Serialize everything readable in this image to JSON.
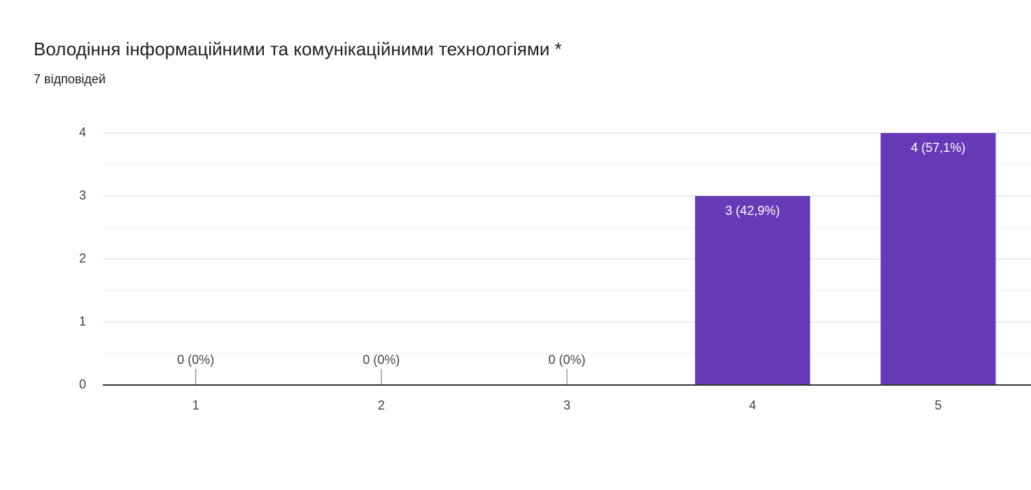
{
  "chart_data": {
    "type": "bar",
    "title": "Володіння інформаційними та комунікаційними технологіями *",
    "subtitle": "7 відповідей",
    "categories": [
      "1",
      "2",
      "3",
      "4",
      "5"
    ],
    "values": [
      0,
      0,
      0,
      3,
      4
    ],
    "value_labels": [
      "0 (0%)",
      "0 (0%)",
      "0 (0%)",
      "3 (42,9%)",
      "4 (57,1%)"
    ],
    "color": "#673ab7",
    "ylim": [
      0,
      4
    ],
    "yticks": [
      0,
      1,
      2,
      3,
      4
    ],
    "grid": true
  }
}
